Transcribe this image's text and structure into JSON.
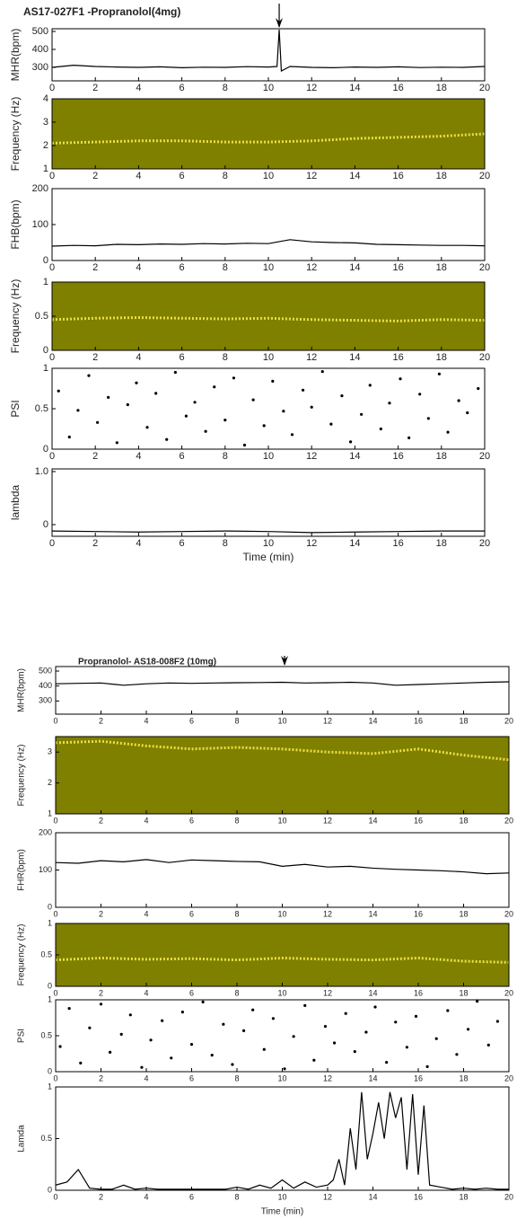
{
  "chart_data": [
    {
      "type": "line",
      "title": "AS17-027F1 -Propranolol(4mg)",
      "ylabel": "MHR(bpm)",
      "color": "#000000",
      "arrow_x": 10.5,
      "xlim": [
        0,
        20
      ],
      "xticks": [
        0,
        2,
        4,
        6,
        8,
        10,
        12,
        14,
        16,
        18,
        20
      ],
      "ylim": [
        225,
        515
      ],
      "yticks": [
        300,
        400,
        500
      ],
      "x": [
        0,
        1,
        2,
        3,
        4,
        5,
        6,
        7,
        8,
        9,
        10,
        10.4,
        10.5,
        10.6,
        11,
        12,
        13,
        14,
        15,
        16,
        17,
        18,
        19,
        20
      ],
      "values": [
        300,
        312,
        305,
        302,
        300,
        303,
        298,
        301,
        300,
        304,
        302,
        305,
        510,
        280,
        305,
        300,
        298,
        302,
        300,
        303,
        299,
        301,
        300,
        305
      ]
    },
    {
      "type": "spectrogram",
      "ylabel": "Frequency (Hz)",
      "background": "#7f7f00",
      "color": "#e8e040",
      "xlim": [
        0,
        20
      ],
      "xticks": [
        0,
        2,
        4,
        6,
        8,
        10,
        12,
        14,
        16,
        18,
        20
      ],
      "ylim": [
        1,
        4
      ],
      "yticks": [
        1,
        2,
        3,
        4
      ],
      "x": [
        0,
        2,
        4,
        6,
        8,
        10,
        12,
        14,
        16,
        18,
        20
      ],
      "values": [
        2.1,
        2.15,
        2.2,
        2.2,
        2.15,
        2.15,
        2.2,
        2.3,
        2.35,
        2.4,
        2.5
      ]
    },
    {
      "type": "line",
      "ylabel": "FHB(bpm)",
      "color": "#000000",
      "xlim": [
        0,
        20
      ],
      "xticks": [
        0,
        2,
        4,
        6,
        8,
        10,
        12,
        14,
        16,
        18,
        20
      ],
      "ylim": [
        0,
        200
      ],
      "yticks": [
        0,
        100,
        200
      ],
      "x": [
        0,
        1,
        2,
        3,
        4,
        5,
        6,
        7,
        8,
        9,
        10,
        11,
        12,
        13,
        14,
        15,
        16,
        17,
        18,
        19,
        20
      ],
      "values": [
        40,
        42,
        41,
        45,
        44,
        46,
        45,
        47,
        46,
        48,
        47,
        58,
        52,
        50,
        49,
        45,
        44,
        43,
        42,
        42,
        41
      ]
    },
    {
      "type": "spectrogram",
      "ylabel": "Frequency (Hz)",
      "background": "#7f7f00",
      "color": "#e8e040",
      "xlim": [
        0,
        20
      ],
      "xticks": [
        0,
        2,
        4,
        6,
        8,
        10,
        12,
        14,
        16,
        18,
        20
      ],
      "ylim": [
        0,
        1
      ],
      "yticks": [
        0,
        0.5,
        1
      ],
      "x": [
        0,
        2,
        4,
        6,
        8,
        10,
        12,
        14,
        16,
        18,
        20
      ],
      "values": [
        0.45,
        0.47,
        0.48,
        0.47,
        0.46,
        0.47,
        0.45,
        0.44,
        0.43,
        0.45,
        0.44
      ]
    },
    {
      "type": "scatter",
      "ylabel": "PSI",
      "color": "#000000",
      "xlim": [
        0,
        20
      ],
      "xticks": [
        0,
        2,
        4,
        6,
        8,
        10,
        12,
        14,
        16,
        18,
        20
      ],
      "ylim": [
        0,
        1
      ],
      "yticks": [
        0,
        0.5,
        1
      ],
      "x": [
        0.3,
        0.8,
        1.2,
        1.7,
        2.1,
        2.6,
        3.0,
        3.5,
        3.9,
        4.4,
        4.8,
        5.3,
        5.7,
        6.2,
        6.6,
        7.1,
        7.5,
        8.0,
        8.4,
        8.9,
        9.3,
        9.8,
        10.2,
        10.7,
        11.1,
        11.6,
        12.0,
        12.5,
        12.9,
        13.4,
        13.8,
        14.3,
        14.7,
        15.2,
        15.6,
        16.1,
        16.5,
        17.0,
        17.4,
        17.9,
        18.3,
        18.8,
        19.2,
        19.7
      ],
      "values": [
        0.72,
        0.15,
        0.48,
        0.91,
        0.33,
        0.64,
        0.08,
        0.55,
        0.82,
        0.27,
        0.69,
        0.12,
        0.95,
        0.41,
        0.58,
        0.22,
        0.77,
        0.36,
        0.88,
        0.05,
        0.61,
        0.29,
        0.84,
        0.47,
        0.18,
        0.73,
        0.52,
        0.96,
        0.31,
        0.66,
        0.09,
        0.43,
        0.79,
        0.25,
        0.57,
        0.87,
        0.14,
        0.68,
        0.38,
        0.93,
        0.21,
        0.6,
        0.45,
        0.75
      ]
    },
    {
      "type": "line",
      "ylabel": "lambda",
      "xlabel": "Time (min)",
      "color": "#000000",
      "xlim": [
        0,
        20
      ],
      "xticks": [
        0,
        2,
        4,
        6,
        8,
        10,
        12,
        14,
        16,
        18,
        20
      ],
      "ylim": [
        -0.22,
        1.05
      ],
      "yticks": [
        0,
        {
          "value": 1,
          "label": "1.0"
        }
      ],
      "x": [
        0,
        2,
        4,
        6,
        8,
        10,
        12,
        14,
        16,
        18,
        20
      ],
      "values": [
        -0.12,
        -0.13,
        -0.14,
        -0.13,
        -0.12,
        -0.13,
        -0.15,
        -0.14,
        -0.13,
        -0.12,
        -0.12
      ]
    },
    {
      "type": "line",
      "title": "Propranolol- AS18-008F2 (10mg)",
      "ylabel": "MHR(bpm)",
      "color": "#000000",
      "arrow_x": 10.1,
      "xlim": [
        0,
        20
      ],
      "xticks": [
        0,
        2,
        4,
        6,
        8,
        10,
        12,
        14,
        16,
        18,
        20
      ],
      "ylim": [
        212,
        530
      ],
      "yticks": [
        300,
        400,
        500
      ],
      "x": [
        0,
        1,
        2,
        3,
        4,
        5,
        6,
        7,
        8,
        9,
        10,
        11,
        12,
        13,
        14,
        15,
        16,
        17,
        18,
        19,
        20
      ],
      "values": [
        415,
        418,
        420,
        405,
        415,
        420,
        418,
        420,
        422,
        423,
        425,
        420,
        422,
        425,
        420,
        405,
        410,
        415,
        420,
        425,
        428
      ]
    },
    {
      "type": "spectrogram",
      "ylabel": "Frequency (Hz)",
      "background": "#7f7f00",
      "color": "#e8e040",
      "xlim": [
        0,
        20
      ],
      "xticks": [
        0,
        2,
        4,
        6,
        8,
        10,
        12,
        14,
        16,
        18,
        20
      ],
      "ylim": [
        1,
        3.5
      ],
      "yticks": [
        1,
        2,
        3
      ],
      "x": [
        0,
        2,
        4,
        6,
        8,
        10,
        12,
        14,
        16,
        18,
        20
      ],
      "values": [
        3.3,
        3.35,
        3.2,
        3.1,
        3.15,
        3.1,
        3.0,
        2.95,
        3.1,
        2.9,
        2.75
      ]
    },
    {
      "type": "line",
      "ylabel": "FHR(bpm)",
      "color": "#000000",
      "xlim": [
        0,
        20
      ],
      "xticks": [
        0,
        2,
        4,
        6,
        8,
        10,
        12,
        14,
        16,
        18,
        20
      ],
      "ylim": [
        0,
        200
      ],
      "yticks": [
        0,
        100,
        200
      ],
      "x": [
        0,
        1,
        2,
        3,
        4,
        5,
        6,
        7,
        8,
        9,
        10,
        11,
        12,
        13,
        14,
        15,
        16,
        17,
        18,
        19,
        20
      ],
      "values": [
        120,
        118,
        125,
        122,
        128,
        120,
        127,
        125,
        123,
        122,
        110,
        115,
        108,
        110,
        105,
        102,
        100,
        98,
        95,
        90,
        92
      ]
    },
    {
      "type": "spectrogram",
      "ylabel": "Frequency (Hz)",
      "background": "#7f7f00",
      "color": "#e8e040",
      "xlim": [
        0,
        20
      ],
      "xticks": [
        0,
        2,
        4,
        6,
        8,
        10,
        12,
        14,
        16,
        18,
        20
      ],
      "ylim": [
        0,
        1
      ],
      "yticks": [
        0,
        0.5,
        1
      ],
      "x": [
        0,
        2,
        4,
        6,
        8,
        10,
        12,
        14,
        16,
        18,
        20
      ],
      "values": [
        0.42,
        0.45,
        0.43,
        0.44,
        0.42,
        0.45,
        0.43,
        0.42,
        0.45,
        0.4,
        0.38
      ]
    },
    {
      "type": "scatter",
      "ylabel": "PSI",
      "color": "#000000",
      "xlim": [
        0,
        20
      ],
      "xticks": [
        0,
        2,
        4,
        6,
        8,
        10,
        12,
        14,
        16,
        18,
        20
      ],
      "ylim": [
        0,
        1
      ],
      "yticks": [
        0,
        0.5,
        1
      ],
      "x": [
        0.2,
        0.6,
        1.1,
        1.5,
        2.0,
        2.4,
        2.9,
        3.3,
        3.8,
        4.2,
        4.7,
        5.1,
        5.6,
        6.0,
        6.5,
        6.9,
        7.4,
        7.8,
        8.3,
        8.7,
        9.2,
        9.6,
        10.1,
        10.5,
        11.0,
        11.4,
        11.9,
        12.3,
        12.8,
        13.2,
        13.7,
        14.1,
        14.6,
        15.0,
        15.5,
        15.9,
        16.4,
        16.8,
        17.3,
        17.7,
        18.2,
        18.6,
        19.1,
        19.5
      ],
      "values": [
        0.35,
        0.88,
        0.12,
        0.61,
        0.94,
        0.27,
        0.52,
        0.79,
        0.06,
        0.44,
        0.71,
        0.19,
        0.83,
        0.38,
        0.97,
        0.23,
        0.66,
        0.1,
        0.57,
        0.86,
        0.31,
        0.74,
        0.04,
        0.49,
        0.92,
        0.16,
        0.63,
        0.4,
        0.81,
        0.28,
        0.55,
        0.9,
        0.13,
        0.69,
        0.34,
        0.77,
        0.07,
        0.46,
        0.85,
        0.24,
        0.59,
        0.98,
        0.37,
        0.7
      ]
    },
    {
      "type": "line",
      "ylabel": "Lamda",
      "xlabel": "Time (min)",
      "color": "#000000",
      "xlim": [
        0,
        20
      ],
      "xticks": [
        0,
        2,
        4,
        6,
        8,
        10,
        12,
        14,
        16,
        18,
        20
      ],
      "ylim": [
        0,
        1
      ],
      "yticks": [
        0,
        0.5,
        1
      ],
      "x": [
        0,
        0.5,
        1,
        1.5,
        2,
        2.5,
        3,
        3.5,
        4,
        4.5,
        5,
        5.5,
        6,
        6.5,
        7,
        7.5,
        8,
        8.5,
        9,
        9.5,
        10,
        10.5,
        11,
        11.5,
        12,
        12.25,
        12.5,
        12.75,
        13,
        13.25,
        13.5,
        13.75,
        14,
        14.25,
        14.5,
        14.75,
        15,
        15.25,
        15.5,
        15.75,
        16,
        16.25,
        16.5,
        17,
        17.5,
        18,
        18.5,
        19,
        19.5,
        20
      ],
      "values": [
        0.05,
        0.08,
        0.2,
        0.02,
        0.01,
        0.01,
        0.05,
        0.01,
        0.02,
        0.01,
        0.01,
        0.01,
        0.01,
        0.01,
        0.01,
        0.01,
        0.03,
        0.01,
        0.05,
        0.02,
        0.1,
        0.02,
        0.08,
        0.03,
        0.05,
        0.1,
        0.3,
        0.05,
        0.6,
        0.2,
        0.95,
        0.3,
        0.55,
        0.85,
        0.5,
        0.95,
        0.7,
        0.9,
        0.2,
        0.93,
        0.15,
        0.82,
        0.05,
        0.03,
        0.01,
        0.02,
        0.01,
        0.02,
        0.01,
        0.01
      ]
    }
  ]
}
